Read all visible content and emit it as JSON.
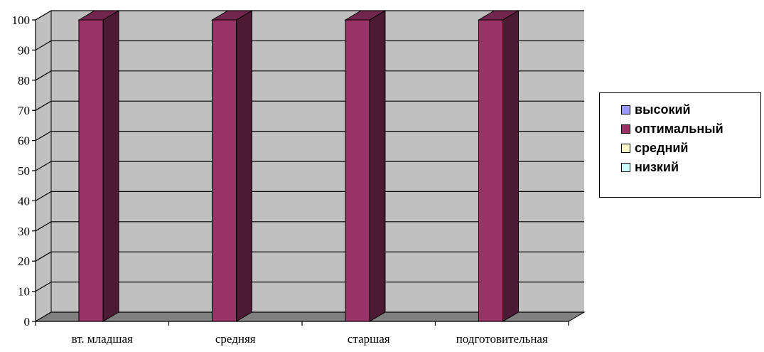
{
  "chart_data": {
    "type": "bar",
    "categories": [
      "вт. младшая",
      "средняя",
      "старшая",
      "подготовительная"
    ],
    "series": [
      {
        "name": "высокий",
        "color": "#9999ff",
        "values": [
          0,
          0,
          0,
          0
        ]
      },
      {
        "name": "оптимальный",
        "color": "#993366",
        "values": [
          100,
          100,
          100,
          100
        ]
      },
      {
        "name": "средний",
        "color": "#ffffcc",
        "values": [
          0,
          0,
          0,
          0
        ]
      },
      {
        "name": "низкий",
        "color": "#ccffff",
        "values": [
          0,
          0,
          0,
          0
        ]
      }
    ],
    "yticks": [
      "0",
      "10",
      "20",
      "30",
      "40",
      "50",
      "60",
      "70",
      "80",
      "90",
      "100"
    ],
    "ylim": [
      0,
      100
    ],
    "grid": true,
    "legend_position": "right",
    "plot_background": "#c0c0c0"
  }
}
